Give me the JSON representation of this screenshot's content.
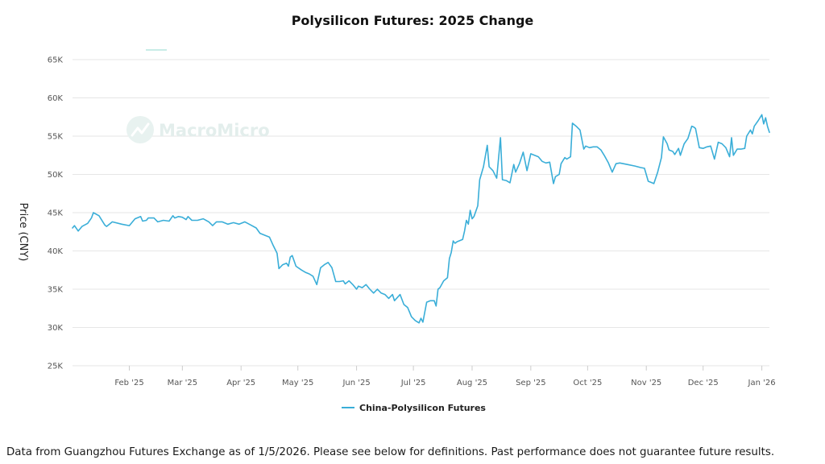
{
  "footnote": "Data from Guangzhou Futures Exchange as of 1/5/2026. Please see below for definitions. Past performance does not guarantee future results.",
  "watermark": "MacroMicro",
  "chart_data": {
    "type": "line",
    "title": "Polysilicon Futures: 2025 Change",
    "ylabel": "Price (CNY)",
    "ylim": [
      25000,
      65000
    ],
    "yticks": [
      {
        "value": 25000,
        "label": "25K"
      },
      {
        "value": 30000,
        "label": "30K"
      },
      {
        "value": 35000,
        "label": "35K"
      },
      {
        "value": 40000,
        "label": "40K"
      },
      {
        "value": 45000,
        "label": "45K"
      },
      {
        "value": 50000,
        "label": "50K"
      },
      {
        "value": 55000,
        "label": "55K"
      },
      {
        "value": 60000,
        "label": "60K"
      },
      {
        "value": 65000,
        "label": "65K"
      }
    ],
    "xlim": [
      "2025-01-02",
      "2026-01-05"
    ],
    "xticks": [
      {
        "date": "2025-02-01",
        "label": "Feb '25"
      },
      {
        "date": "2025-03-01",
        "label": "Mar '25"
      },
      {
        "date": "2025-04-01",
        "label": "Apr '25"
      },
      {
        "date": "2025-05-01",
        "label": "May '25"
      },
      {
        "date": "2025-06-01",
        "label": "Jun '25"
      },
      {
        "date": "2025-07-01",
        "label": "Jul '25"
      },
      {
        "date": "2025-08-01",
        "label": "Aug '25"
      },
      {
        "date": "2025-09-01",
        "label": "Sep '25"
      },
      {
        "date": "2025-10-01",
        "label": "Oct '25"
      },
      {
        "date": "2025-11-01",
        "label": "Nov '25"
      },
      {
        "date": "2025-12-01",
        "label": "Dec '25"
      },
      {
        "date": "2026-01-01",
        "label": "Jan '26"
      }
    ],
    "grid": true,
    "legend_position": "bottom",
    "color": "#3aaed8",
    "series": [
      {
        "name": "China-Polysilicon Futures",
        "points": [
          [
            "2025-01-02",
            43000
          ],
          [
            "2025-01-03",
            43300
          ],
          [
            "2025-01-05",
            42600
          ],
          [
            "2025-01-07",
            43200
          ],
          [
            "2025-01-10",
            43600
          ],
          [
            "2025-01-12",
            44300
          ],
          [
            "2025-01-13",
            45000
          ],
          [
            "2025-01-16",
            44600
          ],
          [
            "2025-01-19",
            43400
          ],
          [
            "2025-01-20",
            43200
          ],
          [
            "2025-01-23",
            43800
          ],
          [
            "2025-01-28",
            43500
          ],
          [
            "2025-02-01",
            43300
          ],
          [
            "2025-02-04",
            44200
          ],
          [
            "2025-02-07",
            44500
          ],
          [
            "2025-02-08",
            43900
          ],
          [
            "2025-02-10",
            44000
          ],
          [
            "2025-02-11",
            44300
          ],
          [
            "2025-02-14",
            44300
          ],
          [
            "2025-02-16",
            43800
          ],
          [
            "2025-02-19",
            44000
          ],
          [
            "2025-02-22",
            43900
          ],
          [
            "2025-02-24",
            44600
          ],
          [
            "2025-02-25",
            44300
          ],
          [
            "2025-02-27",
            44500
          ],
          [
            "2025-03-01",
            44400
          ],
          [
            "2025-03-03",
            44100
          ],
          [
            "2025-03-04",
            44500
          ],
          [
            "2025-03-06",
            44000
          ],
          [
            "2025-03-09",
            44000
          ],
          [
            "2025-03-12",
            44200
          ],
          [
            "2025-03-15",
            43800
          ],
          [
            "2025-03-17",
            43300
          ],
          [
            "2025-03-19",
            43800
          ],
          [
            "2025-03-22",
            43800
          ],
          [
            "2025-03-25",
            43500
          ],
          [
            "2025-03-28",
            43700
          ],
          [
            "2025-03-31",
            43500
          ],
          [
            "2025-04-03",
            43800
          ],
          [
            "2025-04-06",
            43400
          ],
          [
            "2025-04-09",
            43000
          ],
          [
            "2025-04-11",
            42300
          ],
          [
            "2025-04-14",
            42000
          ],
          [
            "2025-04-16",
            41800
          ],
          [
            "2025-04-18",
            40700
          ],
          [
            "2025-04-20",
            39700
          ],
          [
            "2025-04-21",
            37700
          ],
          [
            "2025-04-23",
            38200
          ],
          [
            "2025-04-25",
            38400
          ],
          [
            "2025-04-26",
            38000
          ],
          [
            "2025-04-27",
            39200
          ],
          [
            "2025-04-28",
            39400
          ],
          [
            "2025-04-30",
            38000
          ],
          [
            "2025-05-03",
            37500
          ],
          [
            "2025-05-05",
            37200
          ],
          [
            "2025-05-07",
            37000
          ],
          [
            "2025-05-09",
            36700
          ],
          [
            "2025-05-11",
            35600
          ],
          [
            "2025-05-13",
            37800
          ],
          [
            "2025-05-15",
            38200
          ],
          [
            "2025-05-17",
            38500
          ],
          [
            "2025-05-19",
            37800
          ],
          [
            "2025-05-21",
            36000
          ],
          [
            "2025-05-23",
            36000
          ],
          [
            "2025-05-25",
            36100
          ],
          [
            "2025-05-26",
            35700
          ],
          [
            "2025-05-28",
            36100
          ],
          [
            "2025-05-30",
            35600
          ],
          [
            "2025-06-01",
            35000
          ],
          [
            "2025-06-02",
            35400
          ],
          [
            "2025-06-04",
            35200
          ],
          [
            "2025-06-06",
            35600
          ],
          [
            "2025-06-08",
            35000
          ],
          [
            "2025-06-10",
            34500
          ],
          [
            "2025-06-12",
            35000
          ],
          [
            "2025-06-14",
            34500
          ],
          [
            "2025-06-16",
            34300
          ],
          [
            "2025-06-18",
            33800
          ],
          [
            "2025-06-20",
            34300
          ],
          [
            "2025-06-21",
            33500
          ],
          [
            "2025-06-24",
            34300
          ],
          [
            "2025-06-26",
            33000
          ],
          [
            "2025-06-28",
            32600
          ],
          [
            "2025-06-30",
            31400
          ],
          [
            "2025-07-02",
            30900
          ],
          [
            "2025-07-04",
            30600
          ],
          [
            "2025-07-05",
            31200
          ],
          [
            "2025-07-06",
            30700
          ],
          [
            "2025-07-08",
            33300
          ],
          [
            "2025-07-10",
            33500
          ],
          [
            "2025-07-12",
            33500
          ],
          [
            "2025-07-13",
            32800
          ],
          [
            "2025-07-14",
            35000
          ],
          [
            "2025-07-15",
            35200
          ],
          [
            "2025-07-17",
            36100
          ],
          [
            "2025-07-19",
            36500
          ],
          [
            "2025-07-20",
            39000
          ],
          [
            "2025-07-21",
            39800
          ],
          [
            "2025-07-22",
            41300
          ],
          [
            "2025-07-23",
            41000
          ],
          [
            "2025-07-24",
            41200
          ],
          [
            "2025-07-27",
            41500
          ],
          [
            "2025-07-28",
            42600
          ],
          [
            "2025-07-29",
            44000
          ],
          [
            "2025-07-30",
            43500
          ],
          [
            "2025-07-31",
            45300
          ],
          [
            "2025-08-01",
            44200
          ],
          [
            "2025-08-02",
            44500
          ],
          [
            "2025-08-04",
            45900
          ],
          [
            "2025-08-05",
            49300
          ],
          [
            "2025-08-07",
            51000
          ],
          [
            "2025-08-09",
            53800
          ],
          [
            "2025-08-10",
            51000
          ],
          [
            "2025-08-12",
            50500
          ],
          [
            "2025-08-14",
            49500
          ],
          [
            "2025-08-16",
            54800
          ],
          [
            "2025-08-17",
            49300
          ],
          [
            "2025-08-19",
            49200
          ],
          [
            "2025-08-21",
            48900
          ],
          [
            "2025-08-23",
            51300
          ],
          [
            "2025-08-24",
            50300
          ],
          [
            "2025-08-26",
            51400
          ],
          [
            "2025-08-28",
            52900
          ],
          [
            "2025-08-30",
            50500
          ],
          [
            "2025-09-01",
            52700
          ],
          [
            "2025-09-03",
            52500
          ],
          [
            "2025-09-05",
            52300
          ],
          [
            "2025-09-07",
            51700
          ],
          [
            "2025-09-09",
            51500
          ],
          [
            "2025-09-11",
            51600
          ],
          [
            "2025-09-13",
            48800
          ],
          [
            "2025-09-14",
            49700
          ],
          [
            "2025-09-16",
            50000
          ],
          [
            "2025-09-17",
            51400
          ],
          [
            "2025-09-19",
            52200
          ],
          [
            "2025-09-20",
            52000
          ],
          [
            "2025-09-22",
            52300
          ],
          [
            "2025-09-23",
            56700
          ],
          [
            "2025-09-25",
            56300
          ],
          [
            "2025-09-27",
            55800
          ],
          [
            "2025-09-29",
            53300
          ],
          [
            "2025-09-30",
            53700
          ],
          [
            "2025-10-02",
            53500
          ],
          [
            "2025-10-04",
            53600
          ],
          [
            "2025-10-06",
            53600
          ],
          [
            "2025-10-08",
            53200
          ],
          [
            "2025-10-10",
            52400
          ],
          [
            "2025-10-12",
            51500
          ],
          [
            "2025-10-14",
            50300
          ],
          [
            "2025-10-16",
            51400
          ],
          [
            "2025-10-18",
            51500
          ],
          [
            "2025-10-22",
            51300
          ],
          [
            "2025-10-26",
            51100
          ],
          [
            "2025-10-29",
            50900
          ],
          [
            "2025-10-31",
            50800
          ],
          [
            "2025-11-02",
            49100
          ],
          [
            "2025-11-04",
            48900
          ],
          [
            "2025-11-05",
            48800
          ],
          [
            "2025-11-07",
            50300
          ],
          [
            "2025-11-09",
            52200
          ],
          [
            "2025-11-10",
            54900
          ],
          [
            "2025-11-12",
            54000
          ],
          [
            "2025-11-13",
            53200
          ],
          [
            "2025-11-15",
            53000
          ],
          [
            "2025-11-16",
            52600
          ],
          [
            "2025-11-18",
            53400
          ],
          [
            "2025-11-19",
            52500
          ],
          [
            "2025-11-21",
            54000
          ],
          [
            "2025-11-23",
            54700
          ],
          [
            "2025-11-25",
            56300
          ],
          [
            "2025-11-26",
            56200
          ],
          [
            "2025-11-27",
            56000
          ],
          [
            "2025-11-29",
            53500
          ],
          [
            "2025-12-01",
            53400
          ],
          [
            "2025-12-03",
            53600
          ],
          [
            "2025-12-05",
            53700
          ],
          [
            "2025-12-07",
            52000
          ],
          [
            "2025-12-09",
            54200
          ],
          [
            "2025-12-11",
            54000
          ],
          [
            "2025-12-13",
            53500
          ],
          [
            "2025-12-15",
            52300
          ],
          [
            "2025-12-16",
            54800
          ],
          [
            "2025-12-17",
            52500
          ],
          [
            "2025-12-19",
            53300
          ],
          [
            "2025-12-21",
            53300
          ],
          [
            "2025-12-23",
            53400
          ],
          [
            "2025-12-24",
            55000
          ],
          [
            "2025-12-26",
            55800
          ],
          [
            "2025-12-27",
            55300
          ],
          [
            "2025-12-28",
            56300
          ],
          [
            "2025-12-30",
            57000
          ],
          [
            "2026-01-01",
            57800
          ],
          [
            "2026-01-02",
            56600
          ],
          [
            "2026-01-03",
            57400
          ],
          [
            "2026-01-04",
            56300
          ],
          [
            "2026-01-05",
            55500
          ]
        ]
      }
    ]
  }
}
